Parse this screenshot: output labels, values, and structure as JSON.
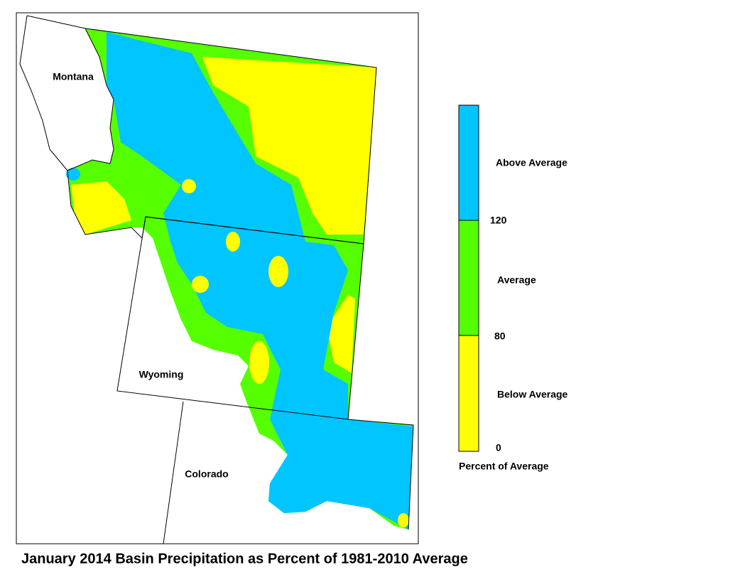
{
  "map": {
    "caption": "January 2014 Basin Precipitation as Percent of 1981-2010 Average",
    "states": [
      "Montana",
      "Wyoming",
      "Colorado"
    ],
    "legend": {
      "title": "Percent of Average",
      "classes": [
        {
          "label": "Above Average",
          "color": "#00c5ff"
        },
        {
          "label": "Average",
          "color": "#55ff00"
        },
        {
          "label": "Below Average",
          "color": "#ffff00"
        }
      ],
      "breaks": [
        120,
        80,
        0
      ]
    }
  }
}
